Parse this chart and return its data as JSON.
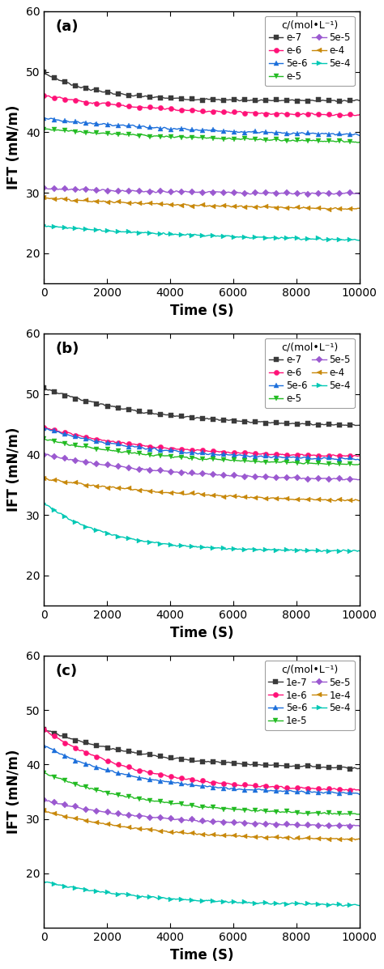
{
  "panels": [
    {
      "label": "a",
      "series": [
        {
          "label": "e-7",
          "color": "#3a3a3a",
          "marker": "s",
          "start": 49.8,
          "end": 45.2,
          "decay": 6.0,
          "markersize": 4.5
        },
        {
          "label": "e-6",
          "color": "#FF1177",
          "marker": "o",
          "start": 46.0,
          "end": 42.5,
          "decay": 2.5,
          "markersize": 4.5
        },
        {
          "label": "5e-6",
          "color": "#1c6fdb",
          "marker": "^",
          "start": 42.3,
          "end": 39.2,
          "decay": 2.0,
          "markersize": 4.5
        },
        {
          "label": "e-5",
          "color": "#22bb22",
          "marker": "v",
          "start": 40.5,
          "end": 37.8,
          "decay": 1.5,
          "markersize": 4.5
        },
        {
          "label": "5e-5",
          "color": "#9b59d0",
          "marker": "D",
          "start": 30.7,
          "end": 29.7,
          "decay": 2.0,
          "markersize": 4.0
        },
        {
          "label": "e-4",
          "color": "#c8880a",
          "marker": "<",
          "start": 29.1,
          "end": 26.8,
          "decay": 1.5,
          "markersize": 4.5
        },
        {
          "label": "5e-4",
          "color": "#00c8b4",
          "marker": ">",
          "start": 24.5,
          "end": 21.5,
          "decay": 1.5,
          "markersize": 4.5
        }
      ],
      "ylim": [
        15,
        60
      ],
      "yticks": [
        20,
        30,
        40,
        50,
        60
      ]
    },
    {
      "label": "b",
      "series": [
        {
          "label": "e-7",
          "color": "#3a3a3a",
          "marker": "s",
          "start": 51.0,
          "end": 44.5,
          "decay": 3.0,
          "markersize": 4.5
        },
        {
          "label": "e-6",
          "color": "#FF1177",
          "marker": "o",
          "start": 44.5,
          "end": 39.5,
          "decay": 3.0,
          "markersize": 4.5
        },
        {
          "label": "5e-6",
          "color": "#1c6fdb",
          "marker": "^",
          "start": 44.3,
          "end": 39.0,
          "decay": 3.0,
          "markersize": 4.5
        },
        {
          "label": "e-5",
          "color": "#22bb22",
          "marker": "v",
          "start": 42.5,
          "end": 38.0,
          "decay": 2.5,
          "markersize": 4.5
        },
        {
          "label": "5e-5",
          "color": "#9b59d0",
          "marker": "D",
          "start": 40.0,
          "end": 35.5,
          "decay": 2.5,
          "markersize": 4.0
        },
        {
          "label": "e-4",
          "color": "#c8880a",
          "marker": "<",
          "start": 36.0,
          "end": 31.8,
          "decay": 2.0,
          "markersize": 4.5
        },
        {
          "label": "5e-4",
          "color": "#00c8b4",
          "marker": ">",
          "start": 32.0,
          "end": 24.0,
          "decay": 5.0,
          "markersize": 4.5
        }
      ],
      "ylim": [
        15,
        60
      ],
      "yticks": [
        20,
        30,
        40,
        50,
        60
      ]
    },
    {
      "label": "c",
      "series": [
        {
          "label": "1e-7",
          "color": "#3a3a3a",
          "marker": "s",
          "start": 46.5,
          "end": 39.0,
          "decay": 3.0,
          "markersize": 4.5
        },
        {
          "label": "1e-6",
          "color": "#FF1177",
          "marker": "o",
          "start": 46.5,
          "end": 35.0,
          "decay": 3.5,
          "markersize": 4.5
        },
        {
          "label": "5e-6",
          "color": "#1c6fdb",
          "marker": "^",
          "start": 43.5,
          "end": 34.5,
          "decay": 3.5,
          "markersize": 4.5
        },
        {
          "label": "1e-5",
          "color": "#22bb22",
          "marker": "v",
          "start": 38.5,
          "end": 30.5,
          "decay": 3.0,
          "markersize": 4.5
        },
        {
          "label": "5e-5",
          "color": "#9b59d0",
          "marker": "D",
          "start": 33.5,
          "end": 28.5,
          "decay": 3.0,
          "markersize": 4.0
        },
        {
          "label": "1e-4",
          "color": "#c8880a",
          "marker": "<",
          "start": 31.5,
          "end": 26.0,
          "decay": 3.0,
          "markersize": 4.5
        },
        {
          "label": "5e-4",
          "color": "#00c8b4",
          "marker": ">",
          "start": 18.5,
          "end": 14.0,
          "decay": 3.0,
          "markersize": 4.5
        }
      ],
      "ylim": [
        10,
        60
      ],
      "yticks": [
        20,
        30,
        40,
        50,
        60
      ]
    }
  ],
  "xlabel": "Time (S)",
  "ylabel": "IFT (mN/m)",
  "xlim": [
    0,
    10000
  ],
  "xticks": [
    0,
    2000,
    4000,
    6000,
    8000,
    10000
  ],
  "n_points": 300,
  "marker_every": 10,
  "linewidth": 1.0,
  "legend_title": "c/(mol•L⁻¹)",
  "background_color": "#ffffff",
  "tick_fontsize": 10,
  "label_fontsize": 12,
  "legend_fontsize": 8.5
}
